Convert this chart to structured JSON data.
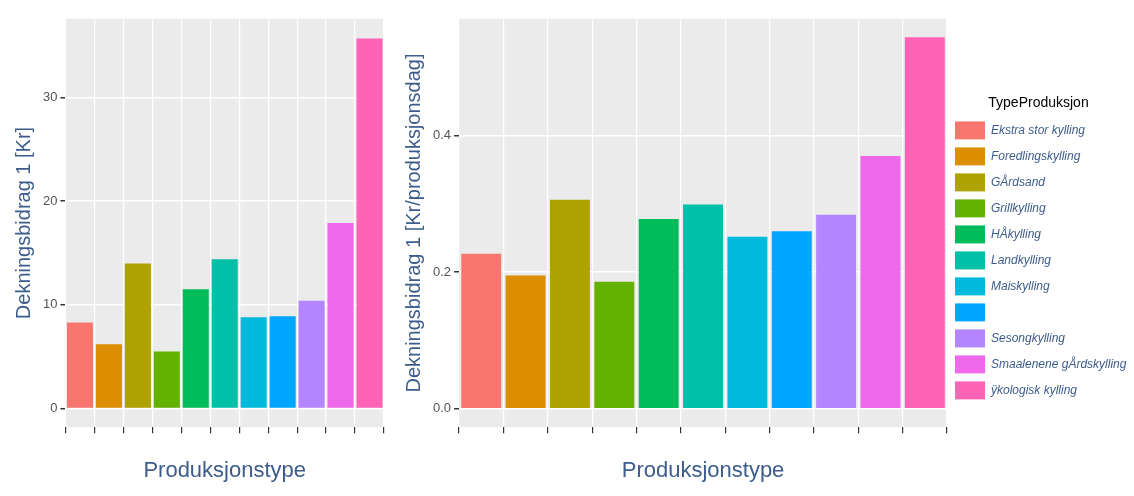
{
  "chart_data": [
    {
      "type": "bar",
      "xlabel": "Produksjonstype",
      "ylabel": "Dekningsbidrag 1 [Kr]",
      "categories": [
        null,
        null,
        null,
        null,
        null,
        null,
        null,
        null,
        null,
        null,
        null
      ],
      "stacked": true,
      "series": [
        {
          "color": "#f8766d",
          "values": [
            8.3,
            null,
            null,
            null,
            null,
            null,
            null,
            null,
            null,
            null,
            null
          ]
        },
        {
          "color": "#db8e00",
          "values": [
            null,
            6.2,
            null,
            null,
            null,
            null,
            null,
            null,
            null,
            null,
            null
          ]
        },
        {
          "color": "#aea200",
          "values": [
            null,
            null,
            14.0,
            null,
            null,
            null,
            null,
            null,
            null,
            null,
            null
          ]
        },
        {
          "color": "#64b200",
          "values": [
            null,
            null,
            null,
            5.5,
            null,
            null,
            null,
            null,
            null,
            null,
            null
          ]
        },
        {
          "color": "#00bd5c",
          "values": [
            null,
            null,
            null,
            null,
            11.5,
            null,
            null,
            null,
            null,
            null,
            null
          ]
        },
        {
          "color": "#00c1a7",
          "values": [
            null,
            null,
            null,
            null,
            null,
            14.4,
            null,
            null,
            null,
            null,
            null
          ]
        },
        {
          "color": "#00bade",
          "values": [
            null,
            null,
            null,
            null,
            null,
            null,
            8.8,
            null,
            null,
            null,
            null
          ]
        },
        {
          "color": "#00a6ff",
          "values": [
            null,
            null,
            null,
            null,
            null,
            null,
            null,
            8.9,
            null,
            null,
            null
          ]
        },
        {
          "color": "#b385ff",
          "values": [
            null,
            null,
            null,
            null,
            null,
            null,
            null,
            null,
            10.4,
            null,
            null
          ]
        },
        {
          "color": "#ef67eb",
          "values": [
            null,
            null,
            null,
            null,
            null,
            null,
            null,
            null,
            null,
            17.9,
            null
          ]
        },
        {
          "color": "#ff63b6",
          "values": [
            null,
            null,
            null,
            null,
            null,
            null,
            null,
            null,
            null,
            null,
            35.7
          ]
        }
      ],
      "ylim": [
        -1.8,
        37.6
      ],
      "yticks": [
        0,
        10,
        20,
        30
      ],
      "tick_labels": "y",
      "grid": true
    },
    {
      "type": "bar",
      "xlabel": "Produksjonstype",
      "ylabel": "Dekningsbidrag 1 [Kr/produksjonsdag]",
      "legend_title": "TypeProduksjon",
      "categories": [
        null,
        null,
        null,
        null,
        null,
        null,
        null,
        null,
        null,
        null,
        null
      ],
      "stacked": true,
      "series": [
        {
          "name": "Ekstra stor kylling",
          "color": "#f8766d",
          "values": [
            0.227,
            null,
            null,
            null,
            null,
            null,
            null,
            null,
            null,
            null,
            null
          ]
        },
        {
          "name": "Foredlingskylling",
          "color": "#db8e00",
          "values": [
            null,
            0.195,
            null,
            null,
            null,
            null,
            null,
            null,
            null,
            null,
            null
          ]
        },
        {
          "name": "GÅrdsand",
          "color": "#aea200",
          "values": [
            null,
            null,
            0.306,
            null,
            null,
            null,
            null,
            null,
            null,
            null,
            null
          ]
        },
        {
          "name": "Grillkylling",
          "color": "#64b200",
          "values": [
            null,
            null,
            null,
            0.186,
            null,
            null,
            null,
            null,
            null,
            null,
            null
          ]
        },
        {
          "name": "HÅkylling",
          "color": "#00bd5c",
          "values": [
            null,
            null,
            null,
            null,
            0.278,
            null,
            null,
            null,
            null,
            null,
            null
          ]
        },
        {
          "name": "Landkylling",
          "color": "#00c1a7",
          "values": [
            null,
            null,
            null,
            null,
            null,
            0.299,
            null,
            null,
            null,
            null,
            null
          ]
        },
        {
          "name": "Maiskylling",
          "color": "#00bade",
          "values": [
            null,
            null,
            null,
            null,
            null,
            null,
            0.252,
            null,
            null,
            null,
            null
          ]
        },
        {
          "color": "#00a6ff",
          "values": [
            null,
            null,
            null,
            null,
            null,
            null,
            null,
            0.26,
            null,
            null,
            null
          ]
        },
        {
          "name": "Sesongkylling",
          "color": "#b385ff",
          "values": [
            null,
            null,
            null,
            null,
            null,
            null,
            null,
            null,
            0.284,
            null,
            null
          ]
        },
        {
          "name": "Smaalenene gÅrdskylling",
          "color": "#ef67eb",
          "values": [
            null,
            null,
            null,
            null,
            null,
            null,
            null,
            null,
            null,
            0.37,
            null
          ]
        },
        {
          "name": "ÿkologisk kylling",
          "color": "#ff63b6",
          "values": [
            null,
            null,
            null,
            null,
            null,
            null,
            null,
            null,
            null,
            null,
            0.544
          ]
        }
      ],
      "ylim": [
        -0.027,
        0.571
      ],
      "yticks": [
        {
          "value": 0,
          "label": "0.0"
        },
        {
          "value": 0.2,
          "label": "0.2"
        },
        {
          "value": 0.4,
          "label": "0.4"
        }
      ],
      "tick_labels": "y",
      "grid": true,
      "legend": "right"
    }
  ]
}
